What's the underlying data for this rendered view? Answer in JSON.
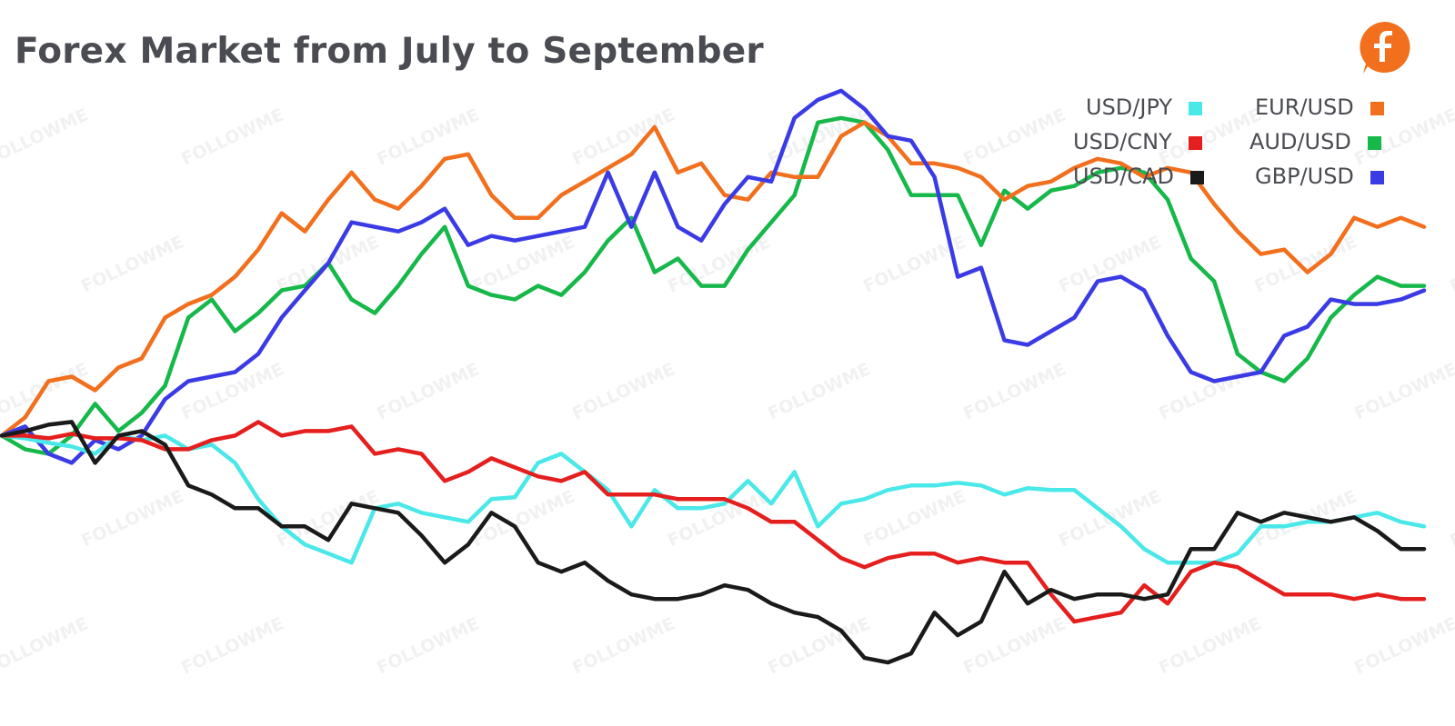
{
  "chart_data": {
    "type": "line",
    "title": "Forex Market from July to September",
    "xlabel": "",
    "ylabel": "",
    "grid": false,
    "legend_position": "top-right",
    "x": [
      0,
      1,
      2,
      3,
      4,
      5,
      6,
      7,
      8,
      9,
      10,
      11,
      12,
      13,
      14,
      15,
      16,
      17,
      18,
      19,
      20,
      21,
      22,
      23,
      24,
      25,
      26,
      27,
      28,
      29,
      30,
      31,
      32,
      33,
      34,
      35,
      36,
      37,
      38,
      39,
      40,
      41,
      42,
      43,
      44,
      45,
      46,
      47,
      48,
      49,
      50,
      51,
      52,
      53,
      54,
      55,
      56,
      57,
      58,
      59,
      60,
      61
    ],
    "ylim": [
      -320,
      480
    ],
    "series": [
      {
        "name": "USD/JPY",
        "color": "#4ae8e8",
        "values": [
          0,
          -3,
          -8,
          -12,
          -20,
          0,
          -5,
          0,
          -15,
          -10,
          -30,
          -70,
          -100,
          -120,
          -130,
          -140,
          -80,
          -75,
          -85,
          -90,
          -95,
          -70,
          -68,
          -30,
          -20,
          -40,
          -60,
          -100,
          -60,
          -80,
          -80,
          -75,
          -50,
          -75,
          -40,
          -100,
          -75,
          -70,
          -60,
          -55,
          -55,
          -52,
          -55,
          -65,
          -58,
          -60,
          -60,
          -80,
          -100,
          -125,
          -140,
          -140,
          -140,
          -130,
          -100,
          -100,
          -95,
          -95,
          -90,
          -85,
          -95,
          -100
        ]
      },
      {
        "name": "EUR/USD",
        "color": "#f26f1d",
        "values": [
          0,
          20,
          60,
          65,
          50,
          75,
          85,
          130,
          145,
          155,
          175,
          205,
          245,
          225,
          260,
          290,
          260,
          250,
          275,
          305,
          310,
          265,
          240,
          240,
          265,
          280,
          295,
          310,
          340,
          290,
          300,
          265,
          260,
          290,
          285,
          285,
          330,
          345,
          330,
          300,
          300,
          295,
          285,
          260,
          275,
          280,
          295,
          305,
          300,
          285,
          295,
          290,
          255,
          225,
          200,
          205,
          180,
          200,
          240,
          230,
          240,
          230
        ]
      },
      {
        "name": "USD/CNY",
        "color": "#e51e1e",
        "values": [
          0,
          0,
          -3,
          2,
          -3,
          -3,
          -5,
          -15,
          -15,
          -5,
          0,
          15,
          0,
          5,
          5,
          10,
          -20,
          -15,
          -20,
          -50,
          -40,
          -25,
          -35,
          -45,
          -50,
          -40,
          -65,
          -65,
          -65,
          -70,
          -70,
          -70,
          -80,
          -95,
          -95,
          -115,
          -135,
          -145,
          -135,
          -130,
          -130,
          -140,
          -135,
          -140,
          -140,
          -175,
          -205,
          -200,
          -195,
          -165,
          -185,
          -150,
          -140,
          -145,
          -160,
          -175,
          -175,
          -175,
          -180,
          -175,
          -180,
          -180
        ]
      },
      {
        "name": "AUD/USD",
        "color": "#16b84a",
        "values": [
          0,
          -15,
          -20,
          0,
          35,
          5,
          25,
          55,
          130,
          150,
          115,
          135,
          160,
          165,
          190,
          150,
          135,
          165,
          200,
          230,
          165,
          155,
          150,
          165,
          155,
          180,
          215,
          240,
          180,
          195,
          165,
          165,
          205,
          235,
          265,
          345,
          350,
          345,
          315,
          265,
          265,
          265,
          210,
          270,
          250,
          270,
          275,
          290,
          295,
          290,
          260,
          195,
          170,
          90,
          70,
          60,
          85,
          130,
          155,
          175,
          165,
          165
        ]
      },
      {
        "name": "USD/CAD",
        "color": "#1a1a1a",
        "values": [
          0,
          5,
          12,
          15,
          -30,
          0,
          5,
          -10,
          -55,
          -65,
          -80,
          -80,
          -100,
          -100,
          -115,
          -75,
          -80,
          -85,
          -110,
          -140,
          -120,
          -85,
          -100,
          -140,
          -150,
          -140,
          -160,
          -175,
          -180,
          -180,
          -175,
          -165,
          -170,
          -185,
          -195,
          -200,
          -215,
          -245,
          -250,
          -240,
          -195,
          -220,
          -205,
          -150,
          -185,
          -170,
          -180,
          -175,
          -175,
          -180,
          -175,
          -125,
          -125,
          -85,
          -95,
          -85,
          -90,
          -95,
          -90,
          -105,
          -125,
          -125
        ]
      },
      {
        "name": "GBP/USD",
        "color": "#3b3be6",
        "values": [
          0,
          10,
          -20,
          -30,
          -5,
          -15,
          0,
          40,
          60,
          65,
          70,
          90,
          130,
          160,
          190,
          235,
          230,
          225,
          235,
          250,
          210,
          220,
          215,
          220,
          225,
          230,
          290,
          230,
          290,
          230,
          215,
          255,
          285,
          280,
          350,
          370,
          380,
          360,
          330,
          325,
          285,
          175,
          185,
          105,
          100,
          115,
          130,
          170,
          175,
          160,
          110,
          70,
          60,
          65,
          70,
          110,
          120,
          150,
          145,
          145,
          150,
          160
        ]
      }
    ]
  },
  "legend": {
    "items": [
      {
        "label": "USD/JPY",
        "color": "#4ae8e8"
      },
      {
        "label": "EUR/USD",
        "color": "#f26f1d"
      },
      {
        "label": "USD/CNY",
        "color": "#e51e1e"
      },
      {
        "label": "AUD/USD",
        "color": "#16b84a"
      },
      {
        "label": "USD/CAD",
        "color": "#1a1a1a"
      },
      {
        "label": "GBP/USD",
        "color": "#3b3be6"
      }
    ]
  },
  "watermark": {
    "text": "FOLLOWME",
    "color": "#969696"
  },
  "logo": {
    "icon": "followme-logo-icon",
    "color": "#f26f1d"
  }
}
